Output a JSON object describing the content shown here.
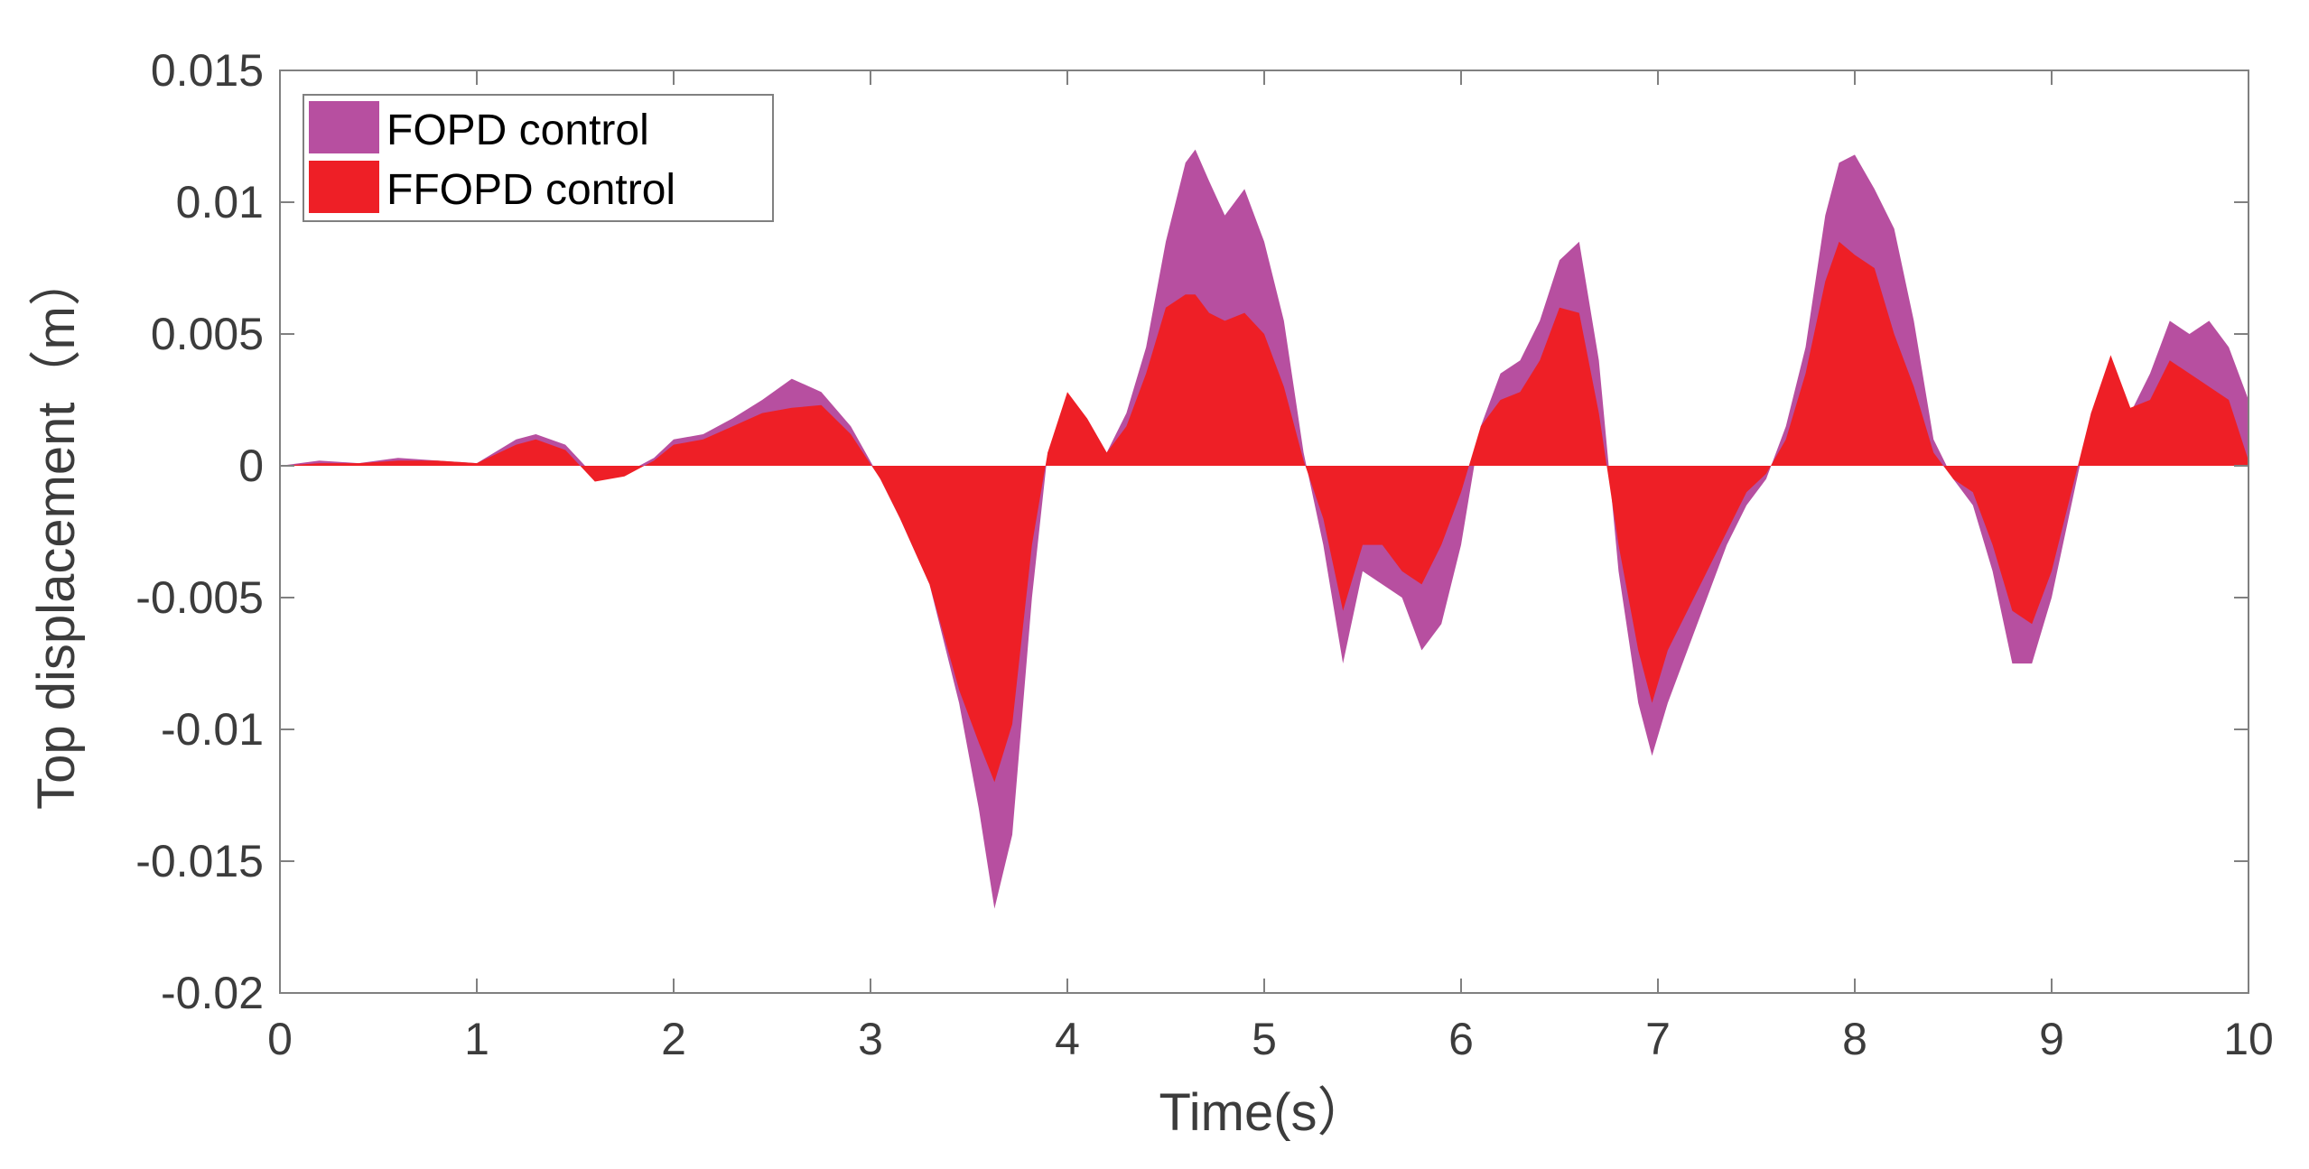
{
  "chart_data": {
    "type": "area",
    "title": "",
    "xlabel": "Time(s）",
    "ylabel": "Top displacement（m）",
    "xlim": [
      0,
      10
    ],
    "ylim": [
      -0.02,
      0.015
    ],
    "xticks": [
      0,
      1,
      2,
      3,
      4,
      5,
      6,
      7,
      8,
      9,
      10
    ],
    "xtick_labels": [
      "0",
      "1",
      "2",
      "3",
      "4",
      "5",
      "6",
      "7",
      "8",
      "9",
      "10"
    ],
    "yticks": [
      -0.02,
      -0.015,
      -0.01,
      -0.005,
      0,
      0.005,
      0.01,
      0.015
    ],
    "ytick_labels": [
      "-0.02",
      "-0.015",
      "-0.01",
      "-0.005",
      "0",
      "0.005",
      "0.01",
      "0.015"
    ],
    "grid": false,
    "legend_position": "top-left",
    "series": [
      {
        "name": "FOPD control",
        "color": "#b74fa0",
        "x": [
          0,
          0.2,
          0.4,
          0.6,
          0.8,
          1.0,
          1.2,
          1.3,
          1.45,
          1.6,
          1.75,
          1.9,
          2.0,
          2.15,
          2.3,
          2.45,
          2.6,
          2.75,
          2.9,
          3.05,
          3.15,
          3.3,
          3.45,
          3.55,
          3.63,
          3.72,
          3.82,
          3.9,
          4.0,
          4.1,
          4.2,
          4.3,
          4.4,
          4.5,
          4.6,
          4.65,
          4.72,
          4.8,
          4.9,
          5.0,
          5.1,
          5.2,
          5.3,
          5.4,
          5.5,
          5.6,
          5.7,
          5.8,
          5.9,
          6.0,
          6.1,
          6.2,
          6.3,
          6.4,
          6.5,
          6.6,
          6.7,
          6.8,
          6.9,
          6.97,
          7.05,
          7.15,
          7.25,
          7.35,
          7.45,
          7.55,
          7.65,
          7.75,
          7.85,
          7.92,
          8.0,
          8.1,
          8.2,
          8.3,
          8.4,
          8.5,
          8.6,
          8.7,
          8.8,
          8.9,
          9.0,
          9.1,
          9.2,
          9.3,
          9.4,
          9.5,
          9.6,
          9.7,
          9.8,
          9.9,
          10.0
        ],
        "values": [
          0,
          0.0002,
          0.0001,
          0.0003,
          0.0002,
          0.0001,
          0.001,
          0.0012,
          0.0008,
          -0.0004,
          -0.0003,
          0.0003,
          0.001,
          0.0012,
          0.0018,
          0.0025,
          0.0033,
          0.0028,
          0.0015,
          -0.0005,
          -0.002,
          -0.0045,
          -0.009,
          -0.013,
          -0.0168,
          -0.014,
          -0.005,
          0.0005,
          0.0023,
          0.0018,
          0.0005,
          0.002,
          0.0045,
          0.0085,
          0.0115,
          0.012,
          0.0108,
          0.0095,
          0.0105,
          0.0085,
          0.0055,
          0.0005,
          -0.003,
          -0.0075,
          -0.004,
          -0.0045,
          -0.005,
          -0.007,
          -0.006,
          -0.003,
          0.0015,
          0.0035,
          0.004,
          0.0055,
          0.0078,
          0.0085,
          0.004,
          -0.004,
          -0.009,
          -0.011,
          -0.009,
          -0.007,
          -0.005,
          -0.003,
          -0.0015,
          -0.0005,
          0.0015,
          0.0045,
          0.0095,
          0.0115,
          0.0118,
          0.0105,
          0.009,
          0.0055,
          0.001,
          -0.0005,
          -0.0015,
          -0.004,
          -0.0075,
          -0.0075,
          -0.005,
          -0.0015,
          0.002,
          0.0038,
          0.002,
          0.0035,
          0.0055,
          0.005,
          0.0055,
          0.0045,
          0.0025
        ]
      },
      {
        "name": "FFOPD control",
        "color": "#ee1f26",
        "x": [
          0,
          0.2,
          0.4,
          0.6,
          0.8,
          1.0,
          1.2,
          1.3,
          1.45,
          1.6,
          1.75,
          1.9,
          2.0,
          2.15,
          2.3,
          2.45,
          2.6,
          2.75,
          2.9,
          3.05,
          3.15,
          3.3,
          3.45,
          3.55,
          3.63,
          3.72,
          3.82,
          3.9,
          4.0,
          4.1,
          4.2,
          4.3,
          4.4,
          4.5,
          4.6,
          4.65,
          4.72,
          4.8,
          4.9,
          5.0,
          5.1,
          5.2,
          5.3,
          5.4,
          5.5,
          5.6,
          5.7,
          5.8,
          5.9,
          6.0,
          6.1,
          6.2,
          6.3,
          6.4,
          6.5,
          6.6,
          6.7,
          6.8,
          6.9,
          6.97,
          7.05,
          7.15,
          7.25,
          7.35,
          7.45,
          7.55,
          7.65,
          7.75,
          7.85,
          7.92,
          8.0,
          8.1,
          8.2,
          8.3,
          8.4,
          8.5,
          8.6,
          8.7,
          8.8,
          8.9,
          9.0,
          9.1,
          9.2,
          9.3,
          9.4,
          9.5,
          9.6,
          9.7,
          9.8,
          9.9,
          10.0
        ],
        "values": [
          0,
          0.0001,
          0.0001,
          0.0002,
          0.0002,
          0.0001,
          0.0008,
          0.001,
          0.0006,
          -0.0006,
          -0.0004,
          0.0002,
          0.0008,
          0.001,
          0.0015,
          0.002,
          0.0022,
          0.0023,
          0.0012,
          -0.0005,
          -0.002,
          -0.0045,
          -0.0085,
          -0.0105,
          -0.012,
          -0.0098,
          -0.003,
          0.0005,
          0.0028,
          0.0018,
          0.0005,
          0.0015,
          0.0035,
          0.006,
          0.0065,
          0.0065,
          0.0058,
          0.0055,
          0.0058,
          0.005,
          0.003,
          0.0002,
          -0.002,
          -0.0055,
          -0.003,
          -0.003,
          -0.004,
          -0.0045,
          -0.003,
          -0.001,
          0.0015,
          0.0025,
          0.0028,
          0.004,
          0.006,
          0.0058,
          0.002,
          -0.003,
          -0.007,
          -0.009,
          -0.007,
          -0.0055,
          -0.004,
          -0.0025,
          -0.001,
          -0.0003,
          0.001,
          0.0035,
          0.007,
          0.0085,
          0.008,
          0.0075,
          0.005,
          0.003,
          0.0005,
          -0.0005,
          -0.001,
          -0.003,
          -0.0055,
          -0.006,
          -0.004,
          -0.001,
          0.002,
          0.0042,
          0.0022,
          0.0025,
          0.004,
          0.0035,
          0.003,
          0.0025,
          0.0002
        ]
      }
    ]
  }
}
